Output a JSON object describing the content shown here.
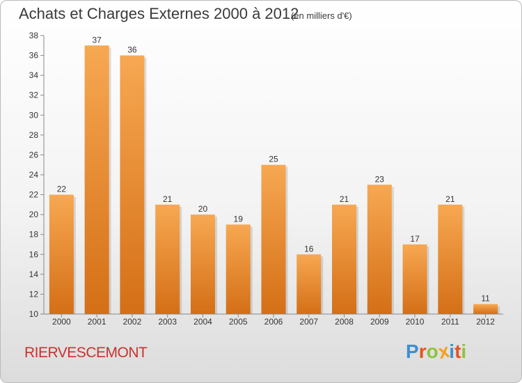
{
  "header": {
    "title": "Achats et Charges Externes 2000 à 2012",
    "subtitle": "(en milliers d'€)"
  },
  "footer": {
    "place": "RIERVESCEMONT",
    "logo_letters": [
      {
        "char": "P",
        "color": "#3a8fd8"
      },
      {
        "char": "r",
        "color": "#e8521f"
      },
      {
        "char": "o",
        "color": "#8cc43c"
      },
      {
        "char": "x",
        "color": "#f4a11d"
      },
      {
        "char": "i",
        "color": "#3a8fd8"
      },
      {
        "char": "t",
        "color": "#e8521f"
      },
      {
        "char": "i",
        "color": "#8cc43c"
      }
    ]
  },
  "colors": {
    "bar_light": "#f7a852",
    "bar_dark": "#d46f16",
    "title": "#3a3a3a",
    "place": "#c8322d"
  },
  "chart_data": {
    "type": "bar",
    "title": "Achats et Charges Externes 2000 à 2012",
    "subtitle": "(en milliers d'€)",
    "categories": [
      "2000",
      "2001",
      "2002",
      "2003",
      "2004",
      "2005",
      "2006",
      "2007",
      "2008",
      "2009",
      "2010",
      "2011",
      "2012"
    ],
    "values": [
      22,
      37,
      36,
      21,
      20,
      19,
      25,
      16,
      21,
      23,
      17,
      21,
      11
    ],
    "ylim": [
      10,
      38
    ],
    "yticks": [
      10,
      12,
      14,
      16,
      18,
      20,
      22,
      24,
      26,
      28,
      30,
      32,
      34,
      36,
      38
    ],
    "xlabel": "",
    "ylabel": "",
    "grid": false,
    "data_labels": true
  }
}
